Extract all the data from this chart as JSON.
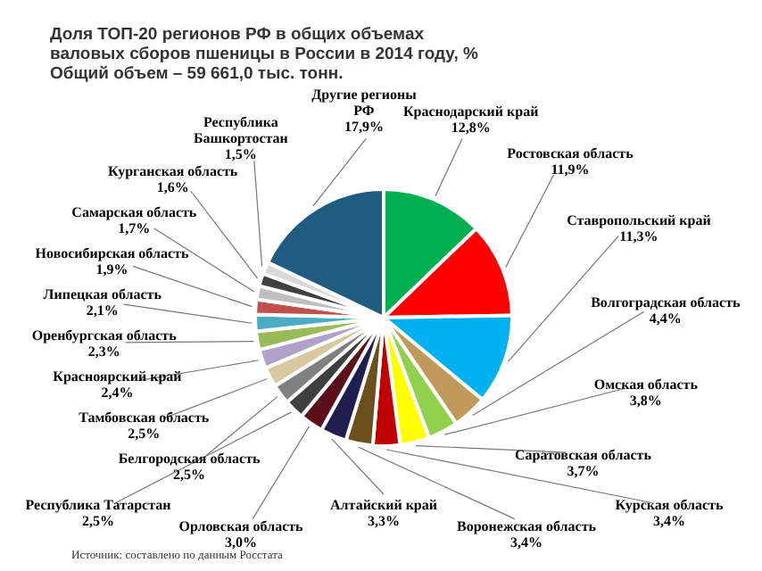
{
  "chart_data": {
    "type": "pie",
    "title": "Доля ТОП-20 регионов РФ в общих объемах валовых сборов пшеницы в России в 2014 году, %",
    "subtitle": "Общий объем – 59 661,0 тыс. тонн.",
    "categories": [
      "Краснодарский край",
      "Ростовская область",
      "Ставропольский край",
      "Волгоградская область",
      "Омская область",
      "Саратовская область",
      "Курская область",
      "Воронежская область",
      "Алтайский край",
      "Орловская область",
      "Республика Татарстан",
      "Белгородская область",
      "Тамбовская область",
      "Красноярский край",
      "Оренбургская область",
      "Липецкая область",
      "Новосибирская область",
      "Самарская область",
      "Курганская область",
      "Республика Башкортостан",
      "Другие регионы РФ"
    ],
    "values": [
      12.8,
      11.9,
      11.3,
      4.4,
      3.8,
      3.7,
      3.4,
      3.4,
      3.3,
      3.0,
      2.5,
      2.5,
      2.5,
      2.4,
      2.3,
      2.1,
      1.9,
      1.7,
      1.6,
      1.5,
      17.9
    ],
    "value_labels": [
      "12,8%",
      "11,9%",
      "11,3%",
      "4,4%",
      "3,8%",
      "3,7%",
      "3,4%",
      "3,4%",
      "3,3%",
      "3,0%",
      "2,5%",
      "2,5%",
      "2,5%",
      "2,4%",
      "2,3%",
      "2,1%",
      "1,9%",
      "1,7%",
      "1,6%",
      "1,5%",
      "17,9%"
    ],
    "colors": [
      "#00b050",
      "#ff0000",
      "#00b0f0",
      "#c09a5a",
      "#92d050",
      "#ffff00",
      "#c00000",
      "#6b4f1d",
      "#1f1f4f",
      "#5a0f1a",
      "#3f3f3f",
      "#808080",
      "#d8c8a0",
      "#b1a0c7",
      "#9bbb59",
      "#4bacc6",
      "#c0504d",
      "#bfbfbf",
      "#404040",
      "#d9d9d9",
      "#1f5c80"
    ],
    "annotations": [
      "Источник: составлено по данным Росстата"
    ]
  }
}
